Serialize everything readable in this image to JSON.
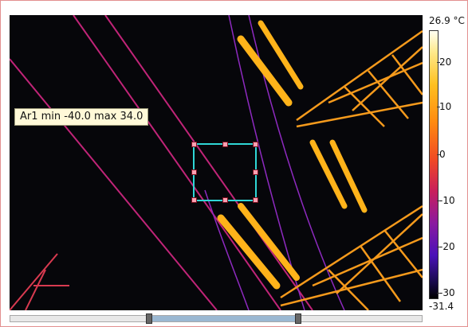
{
  "thermal_view": {
    "roi": {
      "label": "Ar1 min -40.0 max 34.0"
    }
  },
  "color_scale": {
    "max_label": "26.9 °C",
    "min_label": "-31.4",
    "ticks": [
      "20",
      "10",
      "0",
      "-10",
      "-20",
      "-30"
    ],
    "palette": "iron",
    "roi_color": "#2fd6d6"
  },
  "scrollbar": {
    "range_start": 0.34,
    "range_end": 0.7
  }
}
